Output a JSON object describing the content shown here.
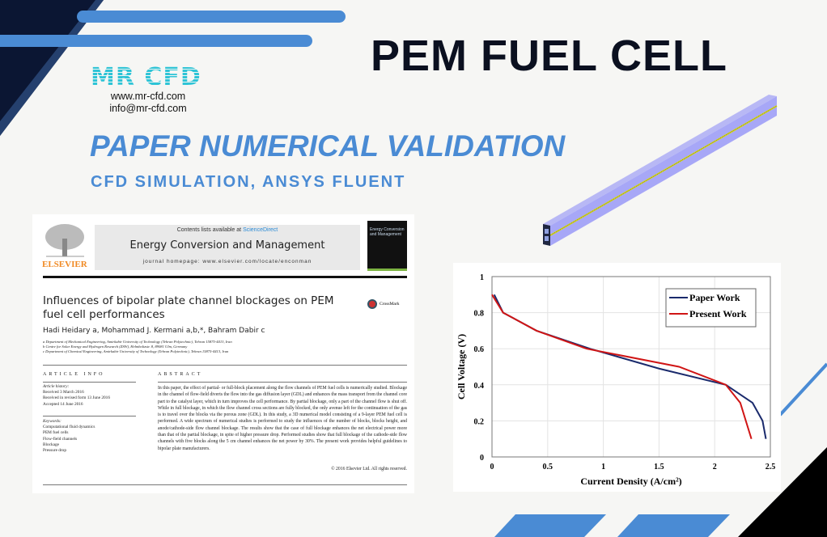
{
  "header": {
    "title": "PEM FUEL CELL",
    "subtitle": "PAPER NUMERICAL VALIDATION",
    "tagline": "CFD SIMULATION, ANSYS FLUENT"
  },
  "brand": {
    "logo": "MR CFD",
    "website": "www.mr-cfd.com",
    "email": "info@mr-cfd.com"
  },
  "colors": {
    "accent_blue": "#4a8bd4",
    "navy": "#0b1633",
    "paper_series": "#1a2a6c",
    "present_series": "#d01515"
  },
  "paper": {
    "contents_prefix": "Contents lists available at ",
    "contents_link": "ScienceDirect",
    "journal": "Energy Conversion and Management",
    "homepage": "journal homepage: www.elsevier.com/locate/enconman",
    "publisher_logo": "ELSEVIER",
    "cover_text": "Energy Conversion and Management",
    "title": "Influences of bipolar plate channel blockages on PEM fuel cell performances",
    "crossmark": "CrossMark",
    "authors": "Hadi Heidary a, Mohammad J. Kermani a,b,*, Bahram Dabir c",
    "affiliations": [
      "a Department of Mechanical Engineering, Amirkabir University of Technology (Tehran Polytechnic), Tehran 15875-4413, Iran",
      "b Centre for Solar Energy and Hydrogen Research (ZSW), Helmholtzstr. 8, 89081 Ulm, Germany",
      "c Department of Chemical Engineering, Amirkabir University of Technology (Tehran Polytechnic), Tehran 15875-4413, Iran"
    ],
    "article_info_heading": "ARTICLE INFO",
    "history_label": "Article history:",
    "history": [
      "Received 3 March 2016",
      "Received in revised form 13 June 2016",
      "Accepted 14 June 2016"
    ],
    "keywords_label": "Keywords:",
    "keywords": [
      "Computational fluid dynamics",
      "PEM fuel cells",
      "Flow-field channels",
      "Blockage",
      "Pressure drop"
    ],
    "abstract_heading": "ABSTRACT",
    "abstract": "In this paper, the effect of partial- or full-block placement along the flow channels of PEM fuel cells is numerically studied. Blockage in the channel of flow-field diverts the flow into the gas diffusion layer (GDL) and enhances the mass transport from the channel core part to the catalyst layer, which in turn improves the cell performance. By partial blockage, only a part of the channel flow is shut off. While in full blockage, in which the flow channel cross sections are fully blocked, the only avenue left for the continuation of the gas is to travel over the blocks via the porous zone (GDL). In this study, a 3D numerical model consisting of a 9-layer PEM fuel cell is performed. A wide spectrum of numerical studies is performed to study the influences of the number of blocks, blocks height, and anode/cathode-side flow channel blockage. The results show that the case of full blockage enhances the net electrical power more than that of the partial blockage, in spite of higher pressure drop. Performed studies show that full blockage of the cathode-side flow channels with five blocks along the 5 cm channel enhances the net power by 30%. The present work provides helpful guidelines to bipolar plate manufacturers.",
    "copyright": "© 2016 Elsevier Ltd. All rights reserved."
  },
  "chart_data": {
    "type": "line",
    "xlabel": "Current Density (A/cm²)",
    "ylabel": "Cell Voltage (V)",
    "xlim": [
      0,
      2.5
    ],
    "ylim": [
      0,
      1
    ],
    "xticks": [
      "0",
      "0.5",
      "1",
      "1.5",
      "2",
      "2.5"
    ],
    "yticks": [
      "0",
      "0.2",
      "0.4",
      "0.6",
      "0.8",
      "1"
    ],
    "grid": true,
    "legend_position": "top-right",
    "series": [
      {
        "name": "Paper Work",
        "color": "#1a2a6c",
        "x": [
          0.02,
          0.1,
          0.4,
          0.88,
          1.5,
          2.1,
          2.34,
          2.43,
          2.46
        ],
        "y": [
          0.9,
          0.8,
          0.7,
          0.6,
          0.49,
          0.4,
          0.3,
          0.2,
          0.1
        ]
      },
      {
        "name": "Present Work",
        "color": "#d01515",
        "x": [
          0.0,
          0.1,
          0.4,
          0.85,
          1.68,
          2.1,
          2.23,
          2.28,
          2.33
        ],
        "y": [
          0.9,
          0.8,
          0.7,
          0.6,
          0.5,
          0.4,
          0.3,
          0.2,
          0.1
        ]
      }
    ]
  }
}
